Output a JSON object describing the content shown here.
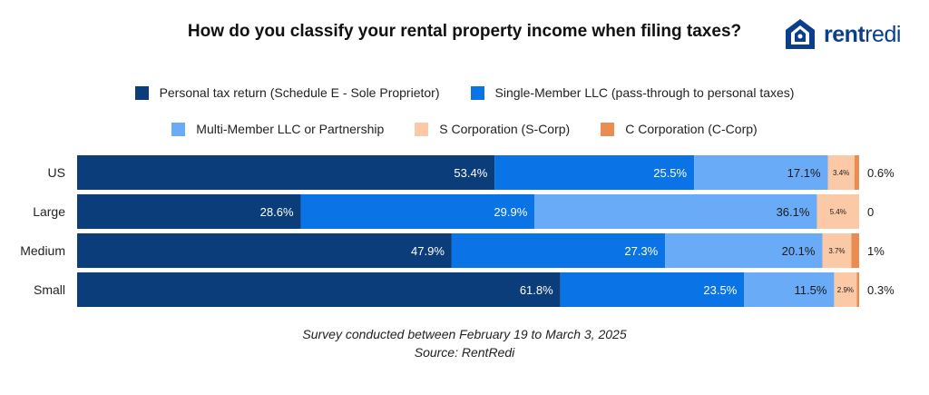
{
  "header": {
    "title": "How do you classify your rental property income when filing taxes?",
    "logo_bold": "rent",
    "logo_light": "redi"
  },
  "legend": {
    "row1": [
      {
        "label": "Personal tax return (Schedule E - Sole Proprietor)",
        "color": "#0b3d7a"
      },
      {
        "label": "Single-Member LLC (pass-through to personal taxes)",
        "color": "#0a74e6"
      }
    ],
    "row2": [
      {
        "label": "Multi-Member LLC or Partnership",
        "color": "#6aabf7"
      },
      {
        "label": "S Corporation (S-Corp)",
        "color": "#fcc9a6"
      },
      {
        "label": "C Corporation (C-Corp)",
        "color": "#e98e50"
      }
    ]
  },
  "footer": {
    "line1": "Survey conducted between February 19 to March 3, 2025",
    "line2": "Source: RentRedi"
  },
  "chart_data": {
    "type": "bar",
    "orientation": "horizontal",
    "stacked": true,
    "categories": [
      "US",
      "Large",
      "Medium",
      "Small"
    ],
    "series": [
      {
        "name": "Personal tax return (Schedule E - Sole Proprietor)",
        "color": "#0b3d7a",
        "values": [
          53.4,
          28.6,
          47.9,
          61.8
        ],
        "labels": [
          "53.4%",
          "28.6%",
          "47.9%",
          "61.8%"
        ]
      },
      {
        "name": "Single-Member LLC (pass-through to personal taxes)",
        "color": "#0a74e6",
        "values": [
          25.5,
          29.9,
          27.3,
          23.5
        ],
        "labels": [
          "25.5%",
          "29.9%",
          "27.3%",
          "23.5%"
        ]
      },
      {
        "name": "Multi-Member LLC or Partnership",
        "color": "#6aabf7",
        "values": [
          17.1,
          36.1,
          20.1,
          11.5
        ],
        "labels": [
          "17.1%",
          "36.1%",
          "20.1%",
          "11.5%"
        ]
      },
      {
        "name": "S Corporation (S-Corp)",
        "color": "#fcc9a6",
        "values": [
          3.4,
          5.4,
          3.7,
          2.9
        ],
        "labels": [
          "3.4%",
          "5.4%",
          "3.7%",
          "2.9%"
        ]
      },
      {
        "name": "C Corporation (C-Corp)",
        "color": "#e98e50",
        "values": [
          0.6,
          0,
          1,
          0.3
        ],
        "labels": [
          "0.6%",
          "0",
          "1%",
          "0.3%"
        ]
      }
    ],
    "xlim": [
      0,
      100
    ],
    "grid": false,
    "legend_position": "top"
  }
}
